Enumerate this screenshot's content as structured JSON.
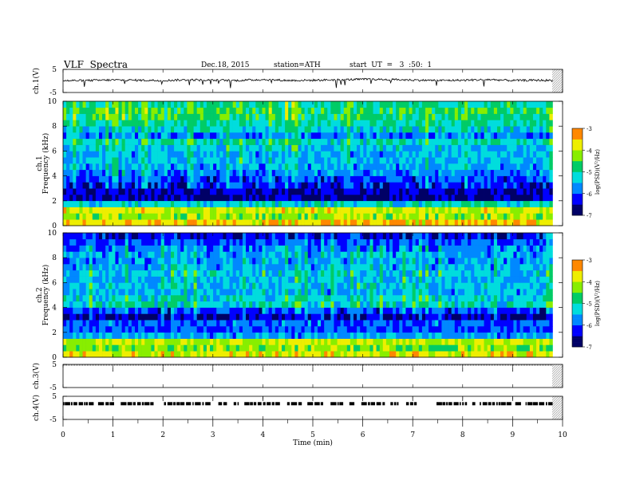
{
  "header": {
    "title": "VLF  Spectra",
    "date": "Dec.18, 2015",
    "station": "station=ATH",
    "start": "start  UT  =   3  :50:  1"
  },
  "colors": {
    "colormap": [
      "#000066",
      "#0000ff",
      "#0088ff",
      "#00dddd",
      "#00cc66",
      "#88ee00",
      "#eeee00",
      "#ff8800",
      "#ff0000",
      "#ffffff"
    ],
    "trace": "#000000",
    "axis": "#000000"
  },
  "chart_data": [
    {
      "type": "line",
      "panel": "ch1-waveform",
      "ylabel": "ch.1(V)",
      "ylim": [
        -5,
        5
      ],
      "yticks": [
        "5",
        "-5"
      ],
      "xlim": [
        0,
        10
      ],
      "x": [
        0,
        0.5,
        1,
        1.5,
        2,
        2.5,
        3,
        3.5,
        4,
        4.5,
        5,
        5.5,
        6,
        6.5,
        7,
        7.5,
        8,
        8.5,
        9,
        9.5,
        9.8
      ],
      "y": [
        0.1,
        0.2,
        0.4,
        0.3,
        0.2,
        0.5,
        0.3,
        0.2,
        0.6,
        0.2,
        0.3,
        0.5,
        0.7,
        0.6,
        0.4,
        0.2,
        0.3,
        0.6,
        0.2,
        0.3,
        0.2
      ]
    },
    {
      "type": "heatmap",
      "panel": "ch1-spectrogram",
      "ylabel": "Frequency  (kHz)",
      "ylabel2": "ch.1",
      "ylim": [
        0,
        10
      ],
      "yticks": [
        "0",
        "2",
        "4",
        "6",
        "8",
        "10"
      ],
      "xlim": [
        0,
        9.8
      ],
      "freq_kHz": [
        0.25,
        0.75,
        1.25,
        1.75,
        2.25,
        2.75,
        3.25,
        3.75,
        4.25,
        4.75,
        5.25,
        5.75,
        6.25,
        6.75,
        7.25,
        7.75,
        8.25,
        8.75,
        9.25,
        9.75
      ],
      "logPSD": [
        -3.6,
        -4.2,
        -3.9,
        -5.2,
        -6.6,
        -6.5,
        -6.3,
        -6.1,
        -5.8,
        -5.6,
        -5.5,
        -5.6,
        -5.4,
        -5.1,
        -5.8,
        -5.3,
        -5.0,
        -4.8,
        -4.7,
        -4.9
      ],
      "colorbar": {
        "label": "log(PSD)(V²/Hz)",
        "range": [
          -7,
          -3
        ],
        "ticks": [
          "-3",
          "-4",
          "-5",
          "-6",
          "-7"
        ]
      }
    },
    {
      "type": "heatmap",
      "panel": "ch2-spectrogram",
      "ylabel": "Frequency  (kHz)",
      "ylabel2": "ch.2",
      "ylim": [
        0,
        10
      ],
      "yticks": [
        "0",
        "2",
        "4",
        "6",
        "8",
        "10"
      ],
      "xlim": [
        0,
        9.8
      ],
      "freq_kHz": [
        0.25,
        0.75,
        1.25,
        1.75,
        2.25,
        2.75,
        3.25,
        3.75,
        4.25,
        4.75,
        5.25,
        5.75,
        6.25,
        6.75,
        7.25,
        7.75,
        8.25,
        8.75,
        9.25,
        9.75
      ],
      "logPSD": [
        -3.8,
        -4.3,
        -4.0,
        -5.6,
        -6.0,
        -5.9,
        -6.6,
        -6.1,
        -5.2,
        -5.3,
        -5.6,
        -5.4,
        -5.5,
        -5.4,
        -5.6,
        -5.7,
        -5.6,
        -5.8,
        -6.0,
        -6.4
      ],
      "colorbar": {
        "label": "log(PSD)(V²/Hz)",
        "range": [
          -7,
          -3
        ],
        "ticks": [
          "-3",
          "-4",
          "-5",
          "-6",
          "-7"
        ]
      }
    },
    {
      "type": "line",
      "panel": "ch3-waveform",
      "ylabel": "ch.3(V)",
      "ylim": [
        -5,
        5
      ],
      "yticks": [
        "5",
        "-5"
      ],
      "xlim": [
        0,
        10
      ],
      "x": [
        0,
        9.8
      ],
      "y": [
        5,
        5
      ]
    },
    {
      "type": "line",
      "panel": "ch4-waveform",
      "ylabel": "ch.4(V)",
      "ylim": [
        -5,
        5
      ],
      "yticks": [
        "5",
        "-5"
      ],
      "xlim": [
        0,
        10
      ],
      "x": [
        0,
        9.8
      ],
      "y": [
        1.8,
        1.8
      ]
    }
  ],
  "xaxis": {
    "label": "Time  (min)",
    "ticks": [
      "0",
      "1",
      "2",
      "3",
      "4",
      "5",
      "6",
      "7",
      "8",
      "9",
      "10"
    ],
    "range": [
      0,
      10
    ]
  }
}
